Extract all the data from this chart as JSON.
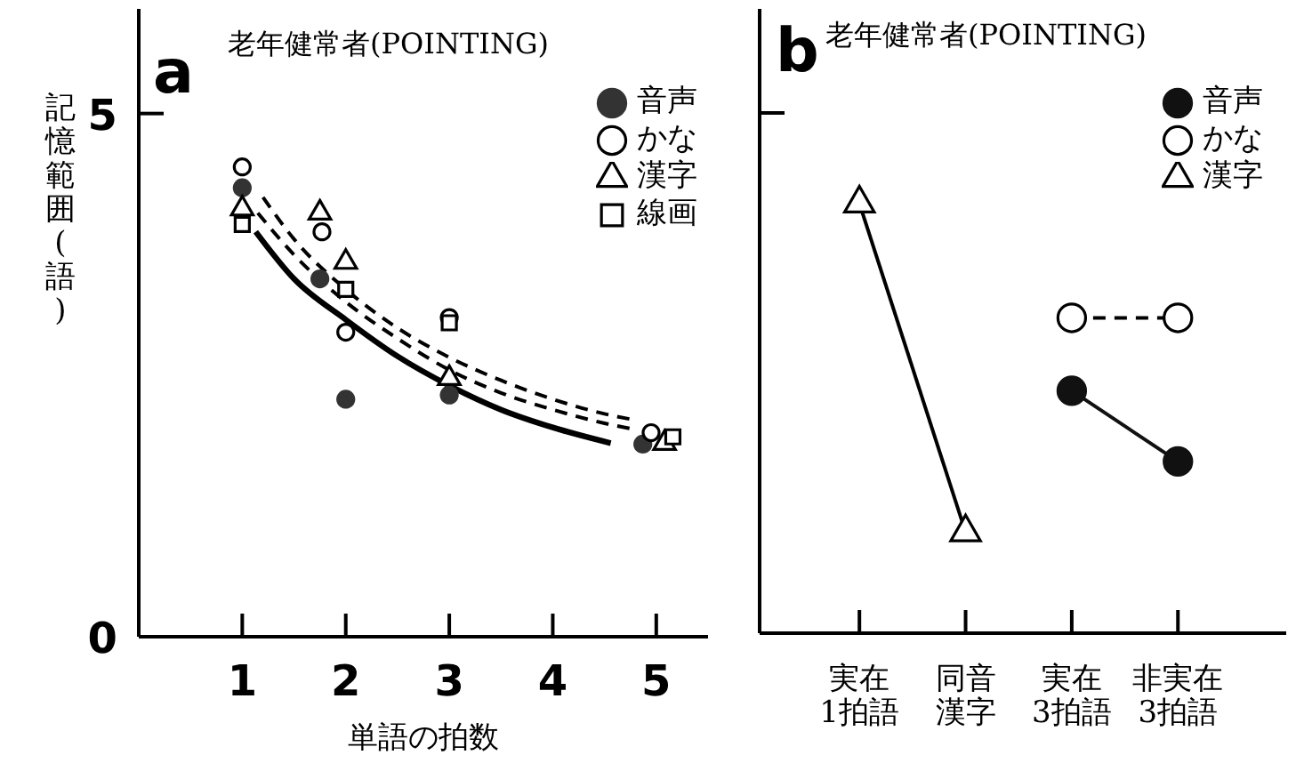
{
  "chart_data": [
    {
      "type": "scatter",
      "title": "老年健常者(POINTING)",
      "xlabel": "単語の拍数",
      "ylabel": "記憶範囲(語)",
      "annotations": [
        "a"
      ],
      "xlim": [
        0,
        5.5
      ],
      "xticks": [
        1,
        2,
        3,
        4,
        5
      ],
      "ylim": [
        0,
        6
      ],
      "yticks": [
        0,
        5
      ],
      "legend": "top right",
      "series": [
        {
          "name": "音声",
          "color": "#333333",
          "marker": "circle",
          "x": [
            1,
            1.75,
            2,
            3,
            4.87
          ],
          "values": [
            4.29,
            3.42,
            2.27,
            2.31,
            1.84
          ]
        },
        {
          "name": "かな",
          "color": "#000000",
          "marker": "circle",
          "x": [
            1,
            1.77,
            2,
            3,
            4.95
          ],
          "values": [
            4.49,
            3.87,
            2.91,
            3.05,
            1.95
          ]
        },
        {
          "name": "漢字",
          "color": "#000000",
          "marker": "triangle",
          "x": [
            1,
            1.75,
            2,
            3,
            5.08
          ],
          "values": [
            4.09,
            4.05,
            3.58,
            2.47,
            1.85
          ]
        },
        {
          "name": "線画",
          "color": "#000000",
          "marker": "square",
          "x": [
            1,
            2,
            3,
            5.16
          ],
          "values": [
            3.94,
            3.32,
            3.0,
            1.91
          ]
        },
        {
          "type": "line",
          "color": "#000000",
          "line_style": "solid",
          "marker": "none",
          "x": [
            1.13,
            1.5,
            2.0,
            2.5,
            3.0,
            3.5,
            4.0,
            4.56
          ],
          "values": [
            3.87,
            3.42,
            3.03,
            2.68,
            2.4,
            2.17,
            2.0,
            1.85
          ]
        },
        {
          "type": "line",
          "color": "#000000",
          "line_style": "dashed",
          "marker": "none",
          "x": [
            1.15,
            1.5,
            2.0,
            2.5,
            3.0,
            3.5,
            4.0,
            4.5,
            4.8
          ],
          "values": [
            4.05,
            3.65,
            3.2,
            2.85,
            2.55,
            2.33,
            2.17,
            2.04,
            1.98
          ]
        },
        {
          "type": "line",
          "color": "#000000",
          "line_style": "dashed",
          "marker": "none",
          "x": [
            1.2,
            1.5,
            2.0,
            2.5,
            3.0,
            3.5,
            4.0,
            4.5,
            4.8
          ],
          "values": [
            4.2,
            3.8,
            3.32,
            2.95,
            2.67,
            2.45,
            2.27,
            2.13,
            2.07
          ]
        }
      ]
    },
    {
      "type": "line",
      "title": "老年健常者(POINTING)",
      "annotations": [
        "b"
      ],
      "categories": [
        "実在1拍語",
        "同音漢字",
        "実在3拍語",
        "非実在3拍語"
      ],
      "ylim": [
        0,
        6
      ],
      "yticks": [
        {
          "value": 5,
          "label": null
        }
      ],
      "tick_labels": "x",
      "legend": "top right",
      "series": [
        {
          "name": "音声",
          "color": "#111111",
          "marker": "circle",
          "line_style": "solid",
          "values": [
            null,
            null,
            2.33,
            1.65
          ]
        },
        {
          "name": "かな",
          "color": "#000000",
          "marker": "circle",
          "line_style": "dashed",
          "values": [
            null,
            null,
            3.03,
            3.03
          ]
        },
        {
          "name": "漢字",
          "color": "#000000",
          "marker": "triangle",
          "line_style": "solid",
          "values": [
            4.13,
            0.97,
            null,
            null
          ]
        }
      ]
    }
  ]
}
